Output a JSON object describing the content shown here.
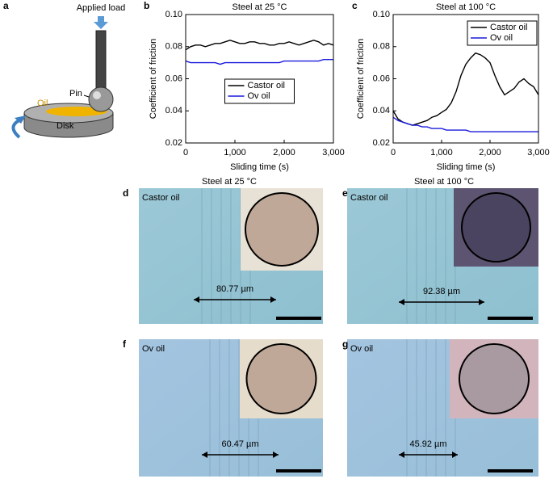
{
  "chart_data": [
    {
      "type": "line",
      "label": "b",
      "title": "Steel at 25 °C",
      "xlabel": "Sliding time (s)",
      "ylabel": "Coefficient of friction",
      "x": [
        0,
        100,
        200,
        300,
        400,
        500,
        600,
        700,
        800,
        900,
        1000,
        1100,
        1200,
        1300,
        1400,
        1500,
        1600,
        1700,
        1800,
        1900,
        2000,
        2100,
        2200,
        2300,
        2400,
        2500,
        2600,
        2700,
        2800,
        2900,
        3000
      ],
      "series": [
        {
          "name": "Castor oil",
          "color": "#000000",
          "values": [
            0.078,
            0.08,
            0.081,
            0.081,
            0.08,
            0.081,
            0.082,
            0.082,
            0.083,
            0.084,
            0.083,
            0.082,
            0.082,
            0.083,
            0.083,
            0.082,
            0.082,
            0.081,
            0.081,
            0.082,
            0.082,
            0.083,
            0.082,
            0.081,
            0.082,
            0.083,
            0.084,
            0.083,
            0.081,
            0.082,
            0.081
          ]
        },
        {
          "name": "Ov oil",
          "color": "#1a1adc",
          "values": [
            0.071,
            0.07,
            0.07,
            0.07,
            0.07,
            0.07,
            0.07,
            0.069,
            0.07,
            0.07,
            0.07,
            0.07,
            0.07,
            0.07,
            0.07,
            0.07,
            0.07,
            0.07,
            0.07,
            0.07,
            0.071,
            0.071,
            0.071,
            0.071,
            0.071,
            0.071,
            0.071,
            0.071,
            0.072,
            0.072,
            0.072
          ]
        }
      ],
      "xlim": [
        0,
        3000
      ],
      "ylim": [
        0.02,
        0.1
      ],
      "xticks": [
        0,
        {
          "value": 1000,
          "label": "1,000"
        },
        {
          "value": 2000,
          "label": "2,000"
        },
        {
          "value": 3000,
          "label": "3,000"
        }
      ],
      "yticks": [
        0.02,
        0.04,
        0.06,
        0.08,
        {
          "value": 0.1,
          "label": "0.10"
        }
      ],
      "legend": "lower center",
      "grid": false
    },
    {
      "type": "line",
      "label": "c",
      "title": "Steel at 100 °C",
      "xlabel": "Sliding time (s)",
      "ylabel": "Coefficient of friction",
      "x": [
        0,
        100,
        200,
        300,
        400,
        500,
        600,
        700,
        800,
        900,
        1000,
        1100,
        1200,
        1300,
        1400,
        1500,
        1600,
        1700,
        1800,
        1900,
        2000,
        2100,
        2200,
        2300,
        2400,
        2500,
        2600,
        2700,
        2800,
        2900,
        3000
      ],
      "series": [
        {
          "name": "Castor oil",
          "color": "#000000",
          "values": [
            0.04,
            0.035,
            0.033,
            0.032,
            0.031,
            0.032,
            0.033,
            0.034,
            0.036,
            0.037,
            0.039,
            0.041,
            0.045,
            0.052,
            0.062,
            0.069,
            0.073,
            0.076,
            0.075,
            0.073,
            0.07,
            0.062,
            0.055,
            0.05,
            0.052,
            0.054,
            0.058,
            0.06,
            0.057,
            0.055,
            0.05
          ]
        },
        {
          "name": "Ov oil",
          "color": "#1a1adc",
          "values": [
            0.036,
            0.034,
            0.033,
            0.032,
            0.031,
            0.031,
            0.03,
            0.03,
            0.029,
            0.029,
            0.029,
            0.028,
            0.028,
            0.028,
            0.028,
            0.028,
            0.027,
            0.027,
            0.027,
            0.027,
            0.027,
            0.027,
            0.027,
            0.027,
            0.027,
            0.027,
            0.027,
            0.027,
            0.027,
            0.027,
            0.027
          ]
        }
      ],
      "xlim": [
        0,
        3000
      ],
      "ylim": [
        0.02,
        0.1
      ],
      "xticks": [
        0,
        {
          "value": 1000,
          "label": "1,000"
        },
        {
          "value": 2000,
          "label": "2,000"
        },
        {
          "value": 3000,
          "label": "3,000"
        }
      ],
      "yticks": [
        0.02,
        0.04,
        0.06,
        0.08,
        {
          "value": 0.1,
          "label": "0.10"
        }
      ],
      "legend": "upper right",
      "grid": false
    }
  ],
  "diagram": {
    "label": "a",
    "applied_load": "Applied load",
    "pin": "Pin",
    "oil": "Oil",
    "disk": "Disk"
  },
  "column_titles": [
    "Steel at 25 °C",
    "Steel at 100 °C"
  ],
  "micrographs": [
    {
      "label": "d",
      "oil": "Castor oil",
      "width": "80.77 µm"
    },
    {
      "label": "e",
      "oil": "Castor oil",
      "width": "92.38 µm"
    },
    {
      "label": "f",
      "oil": "Ov oil",
      "width": "60.47 µm"
    },
    {
      "label": "g",
      "oil": "Ov oil",
      "width": "45.92 µm"
    }
  ]
}
